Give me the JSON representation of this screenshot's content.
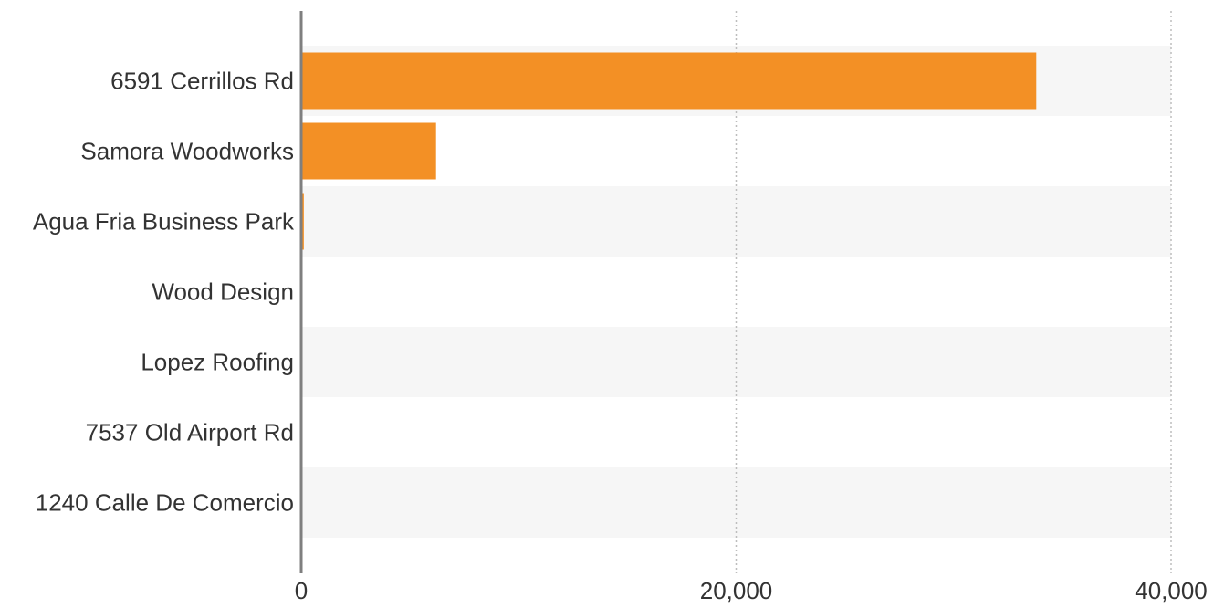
{
  "chart_data": {
    "type": "bar",
    "orientation": "horizontal",
    "categories": [
      "6591 Cerrillos Rd",
      "Samora Woodworks",
      "Agua Fria Business Park",
      "Wood Design",
      "Lopez Roofing",
      "7537 Old Airport Rd",
      "1240 Calle De Comercio"
    ],
    "values": [
      33800,
      6200,
      120,
      0,
      0,
      0,
      0
    ],
    "xlim": [
      0,
      40000
    ],
    "x_ticks": [
      0,
      20000,
      40000
    ],
    "x_tick_labels": [
      "0",
      "20,000",
      "40,000"
    ],
    "title": "",
    "xlabel": "",
    "ylabel": "",
    "grid": "vertical dotted",
    "legend": "none",
    "colors": {
      "bar": "#F39025",
      "band_alt": "#F6F6F6",
      "axis": "#7F7F7F",
      "grid": "#BDBDBD",
      "text": "#333333"
    }
  }
}
